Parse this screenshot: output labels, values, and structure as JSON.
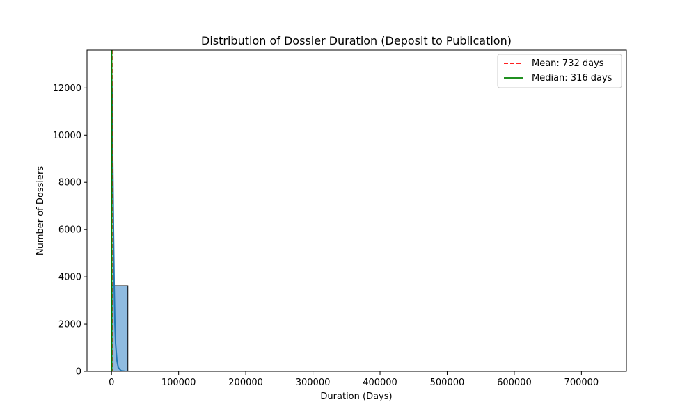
{
  "chart_data": {
    "type": "bar",
    "title": "Distribution of Dossier Duration (Deposit to Publication)",
    "xlabel": "Duration (Days)",
    "ylabel": "Number of Dossiers",
    "xlim": [
      -36500,
      767000
    ],
    "ylim": [
      0,
      13600
    ],
    "x_ticks": [
      0,
      100000,
      200000,
      300000,
      400000,
      500000,
      600000,
      700000
    ],
    "x_tick_labels": [
      "0",
      "100000",
      "200000",
      "300000",
      "400000",
      "500000",
      "600000",
      "700000"
    ],
    "y_ticks": [
      0,
      2000,
      4000,
      6000,
      8000,
      10000,
      12000
    ],
    "y_tick_labels": [
      "0",
      "2000",
      "4000",
      "6000",
      "8000",
      "10000",
      "12000"
    ],
    "bins": [
      {
        "start": 0,
        "end": 24400,
        "count": 3620
      }
    ],
    "kde": {
      "x": [
        0,
        1000,
        2000,
        3000,
        4000,
        5000,
        6000,
        8000,
        10000,
        14000,
        20000,
        40000,
        100000,
        300000,
        500000,
        731000
      ],
      "y": [
        13000,
        11500,
        8600,
        5800,
        3600,
        2050,
        1200,
        480,
        160,
        30,
        5,
        0,
        0,
        0,
        0,
        0
      ]
    },
    "mean": {
      "value": 732,
      "label": "Mean: 732 days",
      "color": "#ff0000",
      "style": "dashed"
    },
    "median": {
      "value": 316,
      "label": "Median: 316 days",
      "color": "#008000",
      "style": "solid"
    },
    "bar_fill": "#8fbbe0",
    "bar_edge": "#000000",
    "kde_color": "#1f77b4",
    "legend_position": "top-right",
    "grid": false
  }
}
